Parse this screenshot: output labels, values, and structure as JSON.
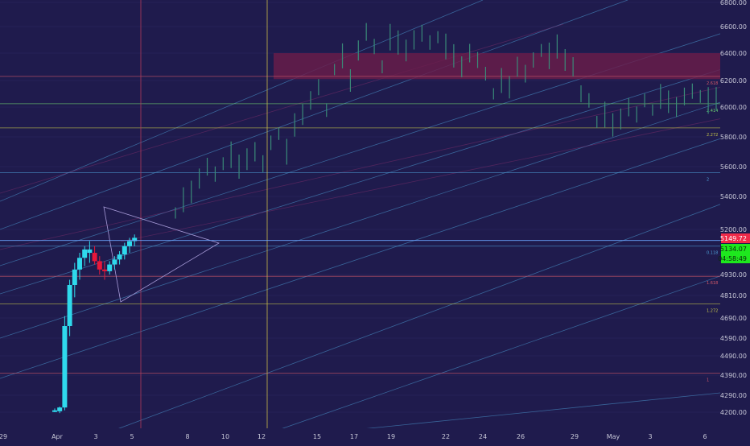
{
  "chart_data": {
    "type": "candlestick",
    "title": "",
    "colors": {
      "background": "#1f1b4d",
      "up_projected": "#2fd9ec",
      "up_range": "#3a8a78",
      "down_candle": "#e8183a",
      "grid": "#3a3575",
      "price_axis_text": "#c8c8d8",
      "last_price_bg": "#ef2b4a",
      "current_price_bg": "#1ee81e",
      "resistance_zone": "#6b1d4a"
    },
    "y_axis": {
      "ticks": [
        "6800.00",
        "6600.00",
        "6400.00",
        "6200.00",
        "6000.00",
        "5800.00",
        "5600.00",
        "5400.00",
        "5200.00",
        "4930.00",
        "4810.00",
        "4690.00",
        "4590.00",
        "4490.00",
        "4390.00",
        "4290.00",
        "4200.00"
      ],
      "price_tags": [
        {
          "label": "5149.72",
          "kind": "last"
        },
        {
          "label": "5134.07",
          "kind": "current"
        },
        {
          "label": "04:58:49",
          "kind": "countdown"
        }
      ]
    },
    "x_axis": {
      "ticks": [
        "29",
        "Apr",
        "3",
        "5",
        "8",
        "10",
        "12",
        "15",
        "17",
        "19",
        "22",
        "24",
        "26",
        "29",
        "May",
        "3",
        "6"
      ]
    },
    "fib_levels": [
      {
        "label": "2.618",
        "price": 6230
      },
      {
        "label": "2.414",
        "price": 6025
      },
      {
        "label": "2.272",
        "price": 5860
      },
      {
        "label": "2",
        "price": 5560
      },
      {
        "label": "0.118",
        "price": 5100
      },
      {
        "label": "1.618",
        "price": 4920
      },
      {
        "label": "1.272",
        "price": 4765
      },
      {
        "label": "1",
        "price": 4400
      }
    ],
    "resistance_zone": {
      "from": 6210,
      "to": 6400
    },
    "candles_cyan": [
      {
        "o": 4210,
        "h": 4220,
        "l": 4200,
        "c": 4205
      },
      {
        "o": 4205,
        "h": 4230,
        "l": 4195,
        "c": 4225
      },
      {
        "o": 4225,
        "h": 4700,
        "l": 4210,
        "c": 4650
      },
      {
        "o": 4650,
        "h": 4900,
        "l": 4600,
        "c": 4870
      },
      {
        "o": 4870,
        "h": 5000,
        "l": 4800,
        "c": 4960
      },
      {
        "o": 4960,
        "h": 5060,
        "l": 4900,
        "c": 5030
      },
      {
        "o": 5030,
        "h": 5100,
        "l": 4980,
        "c": 5080
      },
      {
        "o": 5080,
        "h": 5130,
        "l": 5000,
        "c": 5060
      }
    ],
    "candles_red": [
      {
        "o": 5060,
        "h": 5100,
        "l": 4990,
        "c": 5010
      },
      {
        "o": 5010,
        "h": 5040,
        "l": 4930,
        "c": 4960
      },
      {
        "o": 4960,
        "h": 5010,
        "l": 4900,
        "c": 4950
      }
    ],
    "candles_cyan2": [
      {
        "o": 4950,
        "h": 5010,
        "l": 4930,
        "c": 4990
      },
      {
        "o": 4990,
        "h": 5040,
        "l": 4960,
        "c": 5020
      },
      {
        "o": 5020,
        "h": 5070,
        "l": 4990,
        "c": 5050
      },
      {
        "o": 5050,
        "h": 5120,
        "l": 5020,
        "c": 5100
      },
      {
        "o": 5100,
        "h": 5150,
        "l": 5060,
        "c": 5130
      },
      {
        "o": 5130,
        "h": 5170,
        "l": 5100,
        "c": 5150
      }
    ],
    "projected_path": [
      5300,
      5380,
      5430,
      5520,
      5600,
      5550,
      5620,
      5680,
      5600,
      5650,
      5700,
      5620,
      5760,
      5820,
      5700,
      5880,
      5950,
      6050,
      6150,
      5980,
      6280,
      6380,
      6200,
      6420,
      6560,
      6450,
      6300,
      6520,
      6480,
      6420,
      6500,
      6550,
      6480,
      6520,
      6450,
      6380,
      6300,
      6400,
      6350,
      6250,
      6100,
      6200,
      6150,
      6300,
      6250,
      6350,
      6420,
      6380,
      6450,
      6350,
      6300,
      6100,
      6050,
      5900,
      5950,
      5880,
      5920,
      6000,
      5950,
      6050,
      5980,
      6080,
      6040,
      6000,
      6080,
      6120,
      6080,
      6050,
      6060
    ]
  }
}
